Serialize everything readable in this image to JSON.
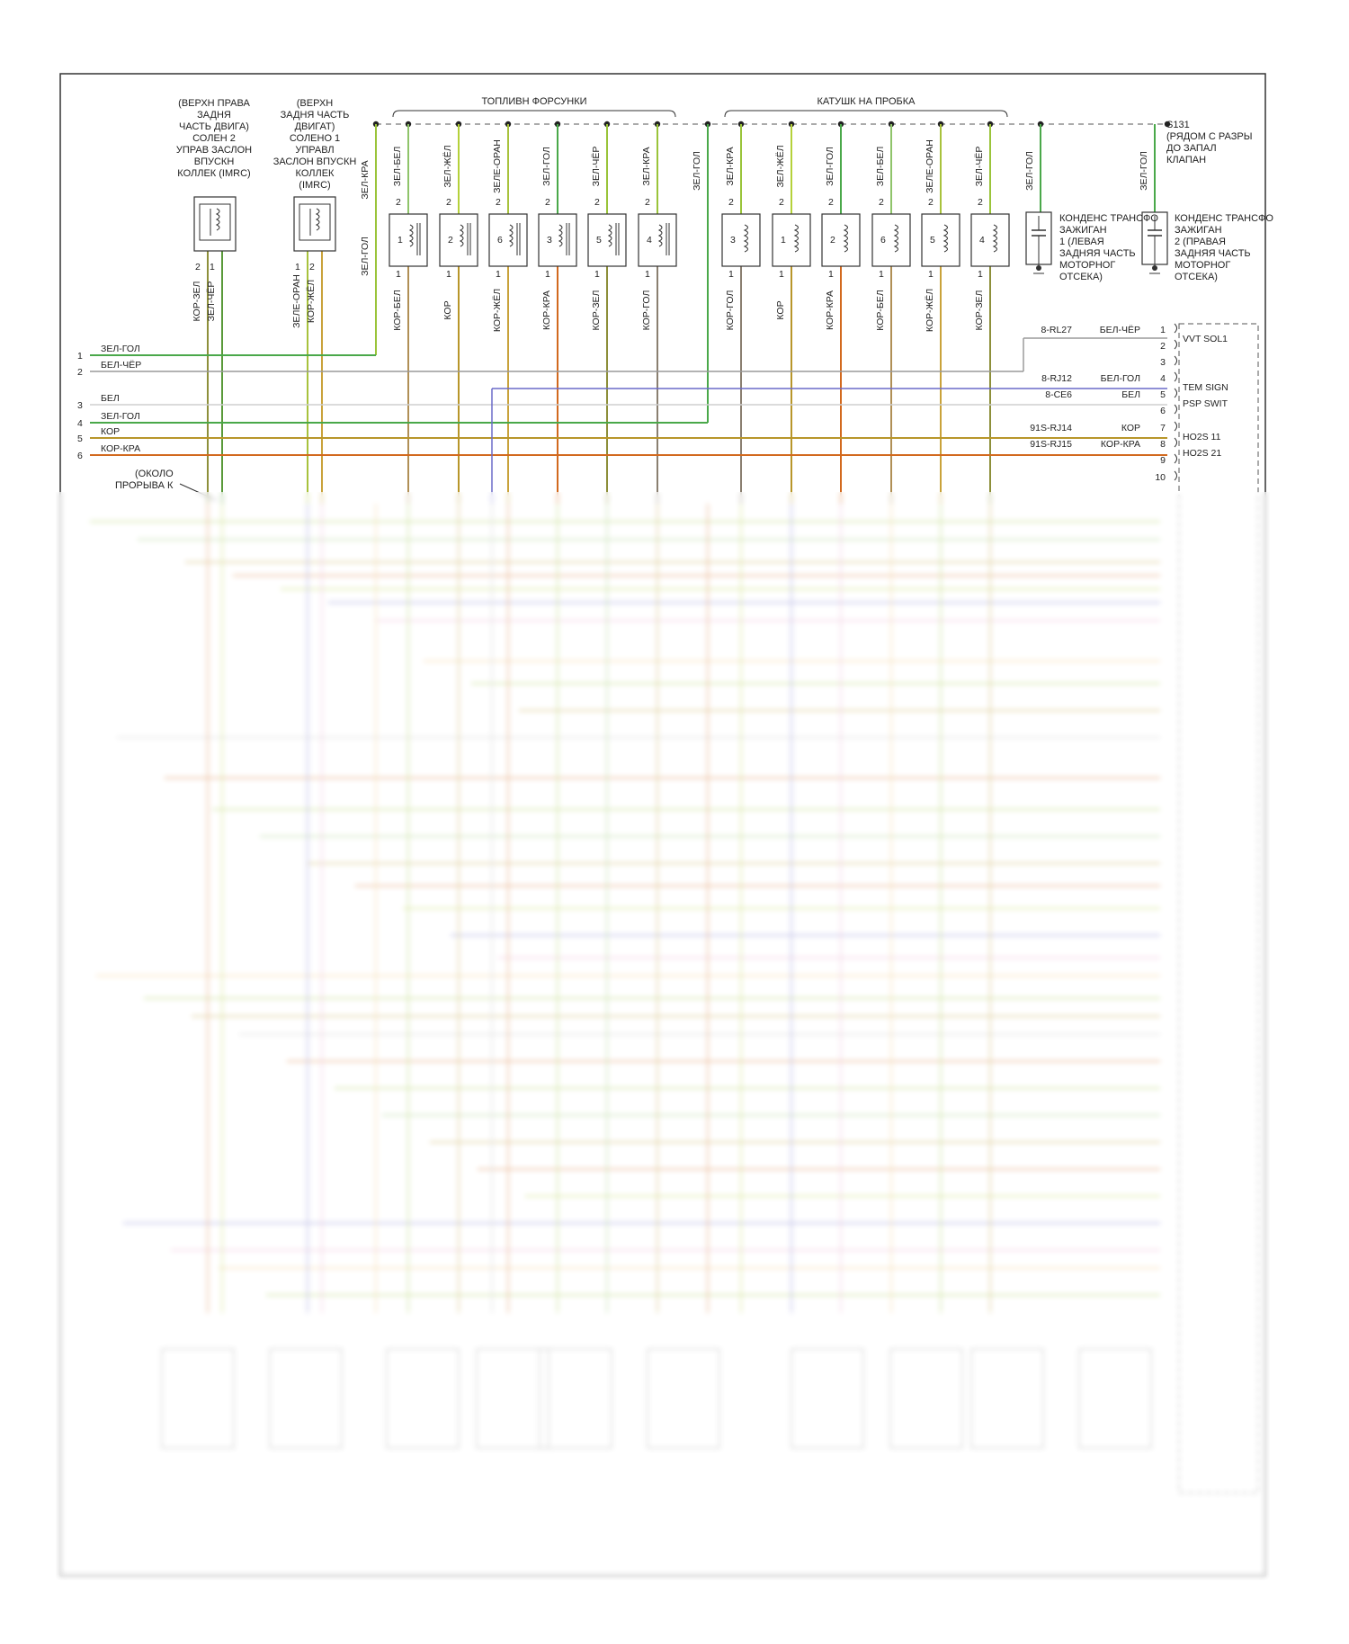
{
  "colors": {
    "zel_gol": "#4aa84a",
    "bel_cher": "#9a9a9a",
    "bel": "#cfcfcf",
    "kor": "#b8962a",
    "kor_kra": "#d2691e",
    "zel_kra": "#9ac43a",
    "zel_bel": "#8fc46a",
    "zel_zhel": "#b5d13a",
    "zele_oran": "#a8c23c",
    "kor_zel": "#8d8f3a",
    "kor_zhel": "#c9a23a",
    "kor_bel": "#b08f55",
    "kor_gol": "#8a7f70",
    "kor_cher": "#6e5a3c",
    "blue": "#6a6ac8",
    "frame": "#333333"
  },
  "header": {
    "injectors_title": "ТОПЛИВН ФОРСУНКИ",
    "coils_title": "КАТУШК НА ПРОБКА",
    "splice_id": "S131",
    "splice_desc": [
      "(РЯДОМ С РАЗРЫ",
      "ДО ЗАПАЛ",
      "КЛАПАН"
    ],
    "imrc2_desc": [
      "(ВЕРХН ПРАВА",
      "ЗАДНЯ",
      "ЧАСТЬ ДВИГА)",
      "СОЛЕН 2",
      "УПРАВ ЗАСЛОН",
      "ВПУСКН",
      "КОЛЛЕК (IMRC)"
    ],
    "imrc1_desc": [
      "(ВЕРХН",
      "ЗАДНЯ ЧАСТЬ",
      "ДВИГАТ)",
      "СОЛЕНО 1",
      "УПРАВЛ",
      "ЗАСЛОН ВПУСКН",
      "КОЛЛЕК",
      "(IMRC)"
    ],
    "cap1_desc": [
      "КОНДЕНС ТРАНСФО",
      "ЗАЖИГАН",
      "1 (ЛЕВАЯ",
      "ЗАДНЯЯ ЧАСТЬ",
      "МОТОРНОГ",
      "ОТСЕКА)"
    ],
    "cap2_desc": [
      "КОНДЕНС ТРАНСФО",
      "ЗАЖИГАН",
      "2 (ПРАВАЯ",
      "ЗАДНЯЯ ЧАСТЬ",
      "МОТОРНОГ",
      "ОТСЕКА)"
    ],
    "near_break": [
      "(ОКОЛО",
      "ПРОРЫВА К"
    ]
  },
  "top_wire_labels": [
    "ЗЕЛ-КРА",
    "ЗЕЛ-БЕЛ",
    "ЗЕЛ-ЖЁЛ",
    "ЗЕЛЕ-ОРАН",
    "ЗЕЛ-ГОЛ",
    "ЗЕЛ-ЧЁР",
    "ЗЕЛ-КРА",
    "ЗЕЛ-ГОЛ",
    "ЗЕЛ-КРА",
    "ЗЕЛ-ЖЁЛ",
    "ЗЕЛ-ГОЛ",
    "ЗЕЛ-БЕЛ",
    "ЗЕЛЕ-ОРАН",
    "ЗЕЛ-ЧЁР",
    "ЗЕЛ-ГОЛ",
    "ЗЕЛ-ГОЛ"
  ],
  "injectors": [
    {
      "num": "1",
      "bottom_label": "КОР-БЕЛ"
    },
    {
      "num": "2",
      "bottom_label": "КОР"
    },
    {
      "num": "6",
      "bottom_label": "КОР-ЖЁЛ"
    },
    {
      "num": "3",
      "bottom_label": "КОР-КРА"
    },
    {
      "num": "5",
      "bottom_label": "КОР-ЗЕЛ"
    },
    {
      "num": "4",
      "bottom_label": "КОР-ГОЛ"
    }
  ],
  "coils": [
    {
      "num": "3",
      "bottom_label": "КОР-ГОЛ"
    },
    {
      "num": "1",
      "bottom_label": "КОР"
    },
    {
      "num": "2",
      "bottom_label": "КОР-КРА"
    },
    {
      "num": "6",
      "bottom_label": "КОР-БЕЛ"
    },
    {
      "num": "5",
      "bottom_label": "КОР-ЖЁЛ"
    },
    {
      "num": "4",
      "bottom_label": "КОР-ЗЕЛ"
    }
  ],
  "imrc_bottom_labels": [
    "КОР-ЗЕЛ",
    "ЗЕЛ-ЧЁР",
    "ЗЕЛЕ-ОРАН",
    "КОР-ЖЁЛ"
  ],
  "zel_gol_vertical": "ЗЕЛ-ГОЛ",
  "left_connector": [
    {
      "pin": "1",
      "wire": "ЗЕЛ-ГОЛ"
    },
    {
      "pin": "2",
      "wire": "БЕЛ-ЧЁР"
    },
    {
      "pin": "3",
      "wire": "БЕЛ"
    },
    {
      "pin": "4",
      "wire": "ЗЕЛ-ГОЛ"
    },
    {
      "pin": "5",
      "wire": "КОР"
    },
    {
      "pin": "6",
      "wire": "КОР-КРА"
    }
  ],
  "pcm_pins": [
    {
      "pin": "1",
      "circuit": "8-RL27",
      "wire": "БЕЛ-ЧЁР",
      "signal": "VVT SOL1"
    },
    {
      "pin": "2",
      "circuit": "",
      "wire": "",
      "signal": ""
    },
    {
      "pin": "3",
      "circuit": "",
      "wire": "",
      "signal": ""
    },
    {
      "pin": "4",
      "circuit": "8-RJ12",
      "wire": "БЕЛ-ГОЛ",
      "signal": "TEM SIGN"
    },
    {
      "pin": "5",
      "circuit": "8-CE6",
      "wire": "БЕЛ",
      "signal": "PSP SWIT"
    },
    {
      "pin": "6",
      "circuit": "",
      "wire": "",
      "signal": ""
    },
    {
      "pin": "7",
      "circuit": "91S-RJ14",
      "wire": "КОР",
      "signal": "HO2S 11"
    },
    {
      "pin": "8",
      "circuit": "91S-RJ15",
      "wire": "КОР-КРА",
      "signal": "HO2S 21"
    },
    {
      "pin": "9",
      "circuit": "",
      "wire": "",
      "signal": ""
    },
    {
      "pin": "10",
      "circuit": "",
      "wire": "",
      "signal": ""
    }
  ],
  "pin_nums_top": [
    "2",
    "1",
    "1",
    "2"
  ]
}
